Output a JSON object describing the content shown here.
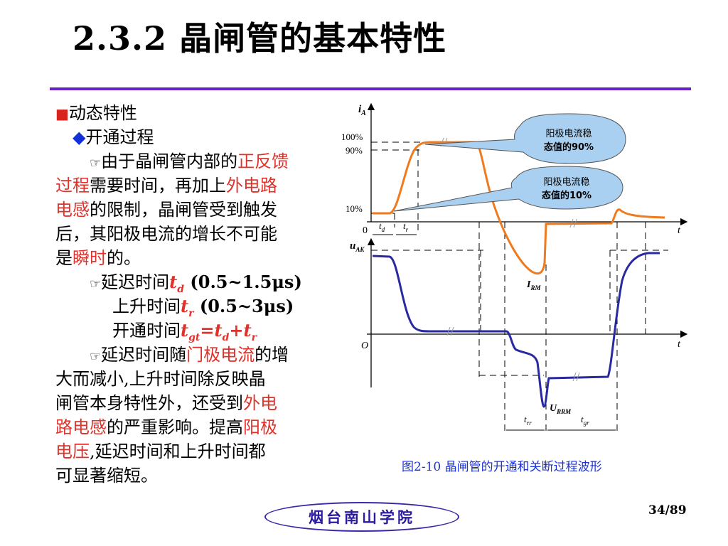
{
  "title": "2.3.2 晶闸管的基本特性",
  "body": {
    "bullet_square": "■",
    "heading": "动态特性",
    "bullet_diamond": "◆",
    "subheading": "开通过程",
    "hand_bullet": "☞",
    "p1": {
      "a": "由于晶闸管内部的",
      "b": "正反馈",
      "c": "过程",
      "d": "需要时间，再加上",
      "e": "外电路",
      "f": "电感",
      "g": "的限制，晶闸管受到触发",
      "h": "后，其阳极电流的增长不可能",
      "i": "是",
      "j": "瞬时",
      "k": "的。"
    },
    "p2": {
      "delay_label": "延迟时间",
      "td_t": "t",
      "td_sub": "d",
      "delay_val": " (0.5~1.5μs)",
      "rise_label": "上升时间",
      "tr_t": "t",
      "tr_sub": "r",
      "rise_val": "  (0.5~3μs)",
      "on_label": "开通时间",
      "tgt_t": "t",
      "tgt_sub": "gt",
      "eq": "=",
      "td2_t": "t",
      "td2_sub": "d",
      "plus": "+",
      "tr2_t": "t",
      "tr2_sub": "r"
    },
    "p3": {
      "a": "延迟时间随",
      "b": "门极电流",
      "c": "的增",
      "d": "大而减小,上升时间除反映晶",
      "e": "闸管本身特性外，还受到",
      "f": "外电",
      "g": "路电感",
      "h": "的严重影响。提高",
      "i": "阳极",
      "j": "电压",
      "k": ",延迟时间和上升时间都",
      "l": "可显著缩短。"
    }
  },
  "figure": {
    "ia_main": "i",
    "ia_sub": "A",
    "uak_main": "u",
    "uak_sub": "AK",
    "pct100": "100%",
    "pct90": "90%",
    "pct10": "10%",
    "zero": "0",
    "origin": "O",
    "t_axis": "t",
    "td_main": "t",
    "td_sub": "d",
    "tr_main": "t",
    "tr_sub": "r",
    "irm_main": "I",
    "irm_sub": "RM",
    "urrm_main": "U",
    "urrm_sub": "RRM",
    "trr_main": "t",
    "trr_sub": "rr",
    "tgr_main": "t",
    "tgr_sub": "gr",
    "callout1_l1": "阳极电流稳",
    "callout1_l2": "态值的90%",
    "callout2_l1": "阳极电流稳",
    "callout2_l2": "态值的10%",
    "caption": "图2-10  晶闸管的开通和关断过程波形",
    "colors": {
      "current": "#f07a1e",
      "voltage": "#2a2aa0",
      "callout": "#a9d0f0"
    }
  },
  "footer": {
    "school": "烟台南山学院",
    "page": "34/89"
  }
}
